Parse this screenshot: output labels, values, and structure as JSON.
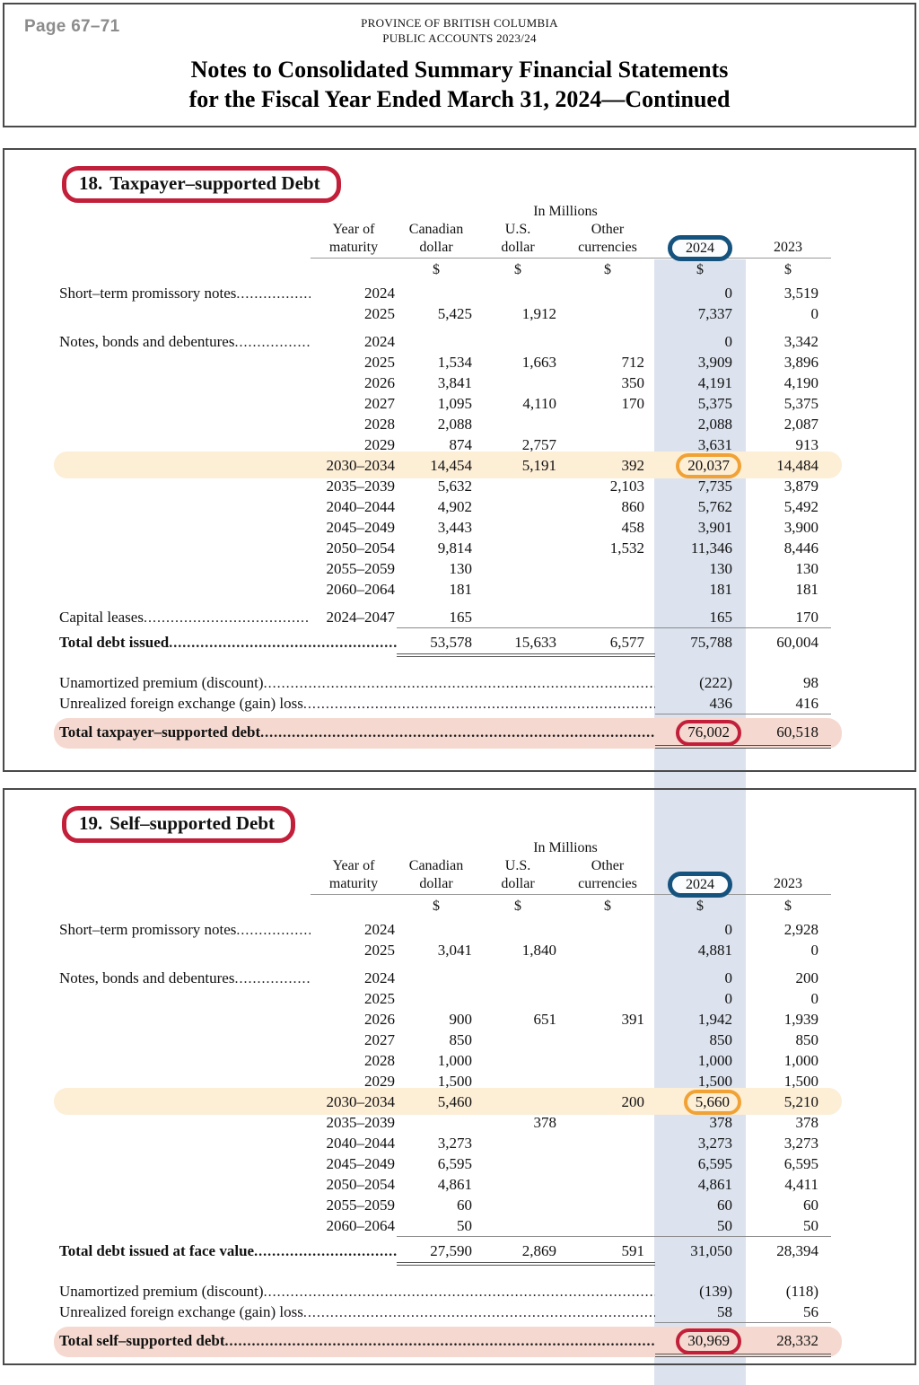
{
  "page": {
    "page_label": "Page 67–71",
    "org_line1": "PROVINCE OF BRITISH COLUMBIA",
    "org_line2": "PUBLIC ACCOUNTS 2023/24",
    "title_line1": "Notes to Consolidated Summary Financial Statements",
    "title_line2": "for the Fiscal Year Ended March 31, 2024—Continued"
  },
  "columns": {
    "group_header": "In Millions",
    "year_l1": "Year of",
    "year_l2": "maturity",
    "cad_l1": "Canadian",
    "cad_l2": "dollar",
    "usd_l1": "U.S.",
    "usd_l2": "dollar",
    "other_l1": "Other",
    "other_l2": "currencies",
    "y2024": "2024",
    "y2023": "2023",
    "currency_symbol": "$"
  },
  "annotations": {
    "red": "#c2203a",
    "blue": "#15537e",
    "orange": "#f0a236",
    "row_highlight_peach": "#fdeed6",
    "row_highlight_pink": "#f5d9d0",
    "column_highlight_blue": "#dce3ee"
  },
  "sections": [
    {
      "number": "18.",
      "title": "Taxpayer–supported Debt",
      "rows": [
        {
          "label": "Short–term promissory notes",
          "year": "2024",
          "cad": "",
          "usd": "",
          "other": "",
          "y2024": "0",
          "y2023": "3,519"
        },
        {
          "label": "",
          "year": "2025",
          "cad": "5,425",
          "usd": "1,912",
          "other": "",
          "y2024": "7,337",
          "y2023": "0"
        },
        {
          "label": "Notes, bonds and debentures",
          "year": "2024",
          "cad": "",
          "usd": "",
          "other": "",
          "y2024": "0",
          "y2023": "3,342",
          "gap": true
        },
        {
          "label": "",
          "year": "2025",
          "cad": "1,534",
          "usd": "1,663",
          "other": "712",
          "y2024": "3,909",
          "y2023": "3,896"
        },
        {
          "label": "",
          "year": "2026",
          "cad": "3,841",
          "usd": "",
          "other": "350",
          "y2024": "4,191",
          "y2023": "4,190"
        },
        {
          "label": "",
          "year": "2027",
          "cad": "1,095",
          "usd": "4,110",
          "other": "170",
          "y2024": "5,375",
          "y2023": "5,375"
        },
        {
          "label": "",
          "year": "2028",
          "cad": "2,088",
          "usd": "",
          "other": "",
          "y2024": "2,088",
          "y2023": "2,087"
        },
        {
          "label": "",
          "year": "2029",
          "cad": "874",
          "usd": "2,757",
          "other": "",
          "y2024": "3,631",
          "y2023": "913"
        },
        {
          "label": "",
          "year": "2030–2034",
          "cad": "14,454",
          "usd": "5,191",
          "other": "392",
          "y2024": "20,037",
          "y2023": "14,484",
          "hl": true,
          "ring": true
        },
        {
          "label": "",
          "year": "2035–2039",
          "cad": "5,632",
          "usd": "",
          "other": "2,103",
          "y2024": "7,735",
          "y2023": "3,879"
        },
        {
          "label": "",
          "year": "2040–2044",
          "cad": "4,902",
          "usd": "",
          "other": "860",
          "y2024": "5,762",
          "y2023": "5,492"
        },
        {
          "label": "",
          "year": "2045–2049",
          "cad": "3,443",
          "usd": "",
          "other": "458",
          "y2024": "3,901",
          "y2023": "3,900"
        },
        {
          "label": "",
          "year": "2050–2054",
          "cad": "9,814",
          "usd": "",
          "other": "1,532",
          "y2024": "11,346",
          "y2023": "8,446"
        },
        {
          "label": "",
          "year": "2055–2059",
          "cad": "130",
          "usd": "",
          "other": "",
          "y2024": "130",
          "y2023": "130"
        },
        {
          "label": "",
          "year": "2060–2064",
          "cad": "181",
          "usd": "",
          "other": "",
          "y2024": "181",
          "y2023": "181"
        },
        {
          "label": "Capital leases",
          "year": "2024–2047",
          "cad": "165",
          "usd": "",
          "other": "",
          "y2024": "165",
          "y2023": "170",
          "gap": true,
          "rule_after": true
        }
      ],
      "total_row": {
        "label": "Total debt issued",
        "cad": "53,578",
        "usd": "15,633",
        "other": "6,577",
        "y2024": "75,788",
        "y2023": "60,004"
      },
      "adjustment_rows": [
        {
          "label": "Unamortized premium (discount)",
          "y2024": "(222)",
          "y2023": "98"
        },
        {
          "label": "Unrealized foreign exchange (gain) loss",
          "y2024": "436",
          "y2023": "416",
          "rule": true
        }
      ],
      "grand_total_row": {
        "label": "Total taxpayer–supported debt",
        "y2024": "76,002",
        "y2023": "60,518"
      }
    },
    {
      "number": "19.",
      "title": "Self–supported Debt",
      "rows": [
        {
          "label": "Short–term promissory notes",
          "year": "2024",
          "cad": "",
          "usd": "",
          "other": "",
          "y2024": "0",
          "y2023": "2,928"
        },
        {
          "label": "",
          "year": "2025",
          "cad": "3,041",
          "usd": "1,840",
          "other": "",
          "y2024": "4,881",
          "y2023": "0"
        },
        {
          "label": "Notes, bonds and debentures",
          "year": "2024",
          "cad": "",
          "usd": "",
          "other": "",
          "y2024": "0",
          "y2023": "200",
          "gap": true
        },
        {
          "label": "",
          "year": "2025",
          "cad": "",
          "usd": "",
          "other": "",
          "y2024": "0",
          "y2023": "0"
        },
        {
          "label": "",
          "year": "2026",
          "cad": "900",
          "usd": "651",
          "other": "391",
          "y2024": "1,942",
          "y2023": "1,939"
        },
        {
          "label": "",
          "year": "2027",
          "cad": "850",
          "usd": "",
          "other": "",
          "y2024": "850",
          "y2023": "850"
        },
        {
          "label": "",
          "year": "2028",
          "cad": "1,000",
          "usd": "",
          "other": "",
          "y2024": "1,000",
          "y2023": "1,000"
        },
        {
          "label": "",
          "year": "2029",
          "cad": "1,500",
          "usd": "",
          "other": "",
          "y2024": "1,500",
          "y2023": "1,500"
        },
        {
          "label": "",
          "year": "2030–2034",
          "cad": "5,460",
          "usd": "",
          "other": "200",
          "y2024": "5,660",
          "y2023": "5,210",
          "hl": true,
          "ring": true
        },
        {
          "label": "",
          "year": "2035–2039",
          "cad": "",
          "usd": "378",
          "other": "",
          "y2024": "378",
          "y2023": "378"
        },
        {
          "label": "",
          "year": "2040–2044",
          "cad": "3,273",
          "usd": "",
          "other": "",
          "y2024": "3,273",
          "y2023": "3,273"
        },
        {
          "label": "",
          "year": "2045–2049",
          "cad": "6,595",
          "usd": "",
          "other": "",
          "y2024": "6,595",
          "y2023": "6,595"
        },
        {
          "label": "",
          "year": "2050–2054",
          "cad": "4,861",
          "usd": "",
          "other": "",
          "y2024": "4,861",
          "y2023": "4,411"
        },
        {
          "label": "",
          "year": "2055–2059",
          "cad": "60",
          "usd": "",
          "other": "",
          "y2024": "60",
          "y2023": "60"
        },
        {
          "label": "",
          "year": "2060–2064",
          "cad": "50",
          "usd": "",
          "other": "",
          "y2024": "50",
          "y2023": "50",
          "rule_after": true
        }
      ],
      "total_row": {
        "label": "Total debt issued at face value",
        "cad": "27,590",
        "usd": "2,869",
        "other": "591",
        "y2024": "31,050",
        "y2023": "28,394"
      },
      "adjustment_rows": [
        {
          "label": "Unamortized premium (discount)",
          "y2024": "(139)",
          "y2023": "(118)"
        },
        {
          "label": "Unrealized foreign exchange (gain) loss",
          "y2024": "58",
          "y2023": "56",
          "rule": true
        }
      ],
      "grand_total_row": {
        "label": "Total self–supported debt",
        "y2024": "30,969",
        "y2023": "28,332"
      }
    }
  ]
}
